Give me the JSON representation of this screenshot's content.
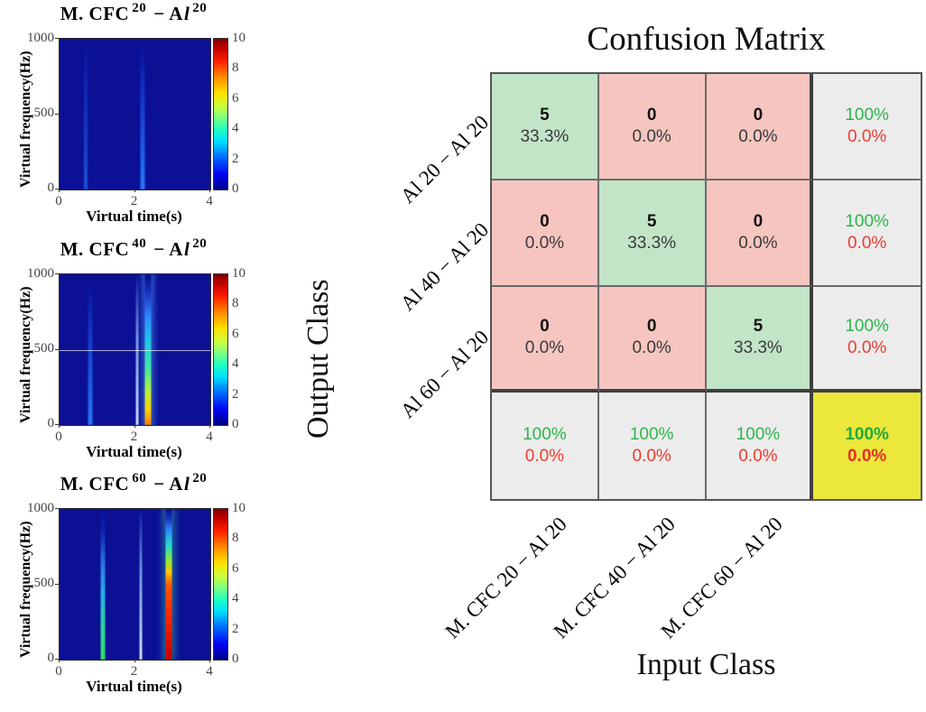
{
  "panels": [
    {
      "title": {
        "base": "M. CFC",
        "sup1": "20",
        "mid": "− A",
        "l": "l",
        "sup2": "20"
      },
      "ylabel": "Virtual frequency(Hz)",
      "xlabel": "Virtual time(s)",
      "yticks": [
        "1000",
        "500",
        "0"
      ],
      "xticks": [
        "0",
        "2",
        "4"
      ],
      "cbar_ticks": [
        "10",
        "8",
        "6",
        "4",
        "2",
        "0"
      ]
    },
    {
      "title": {
        "base": "M. CFC",
        "sup1": "40",
        "mid": "− A",
        "l": "l",
        "sup2": "20"
      },
      "ylabel": "Virtual frequency(Hz)",
      "xlabel": "Virtual time(s)",
      "yticks": [
        "1000",
        "500",
        "0"
      ],
      "xticks": [
        "0",
        "2",
        "4"
      ],
      "cbar_ticks": [
        "10",
        "8",
        "6",
        "4",
        "2",
        "0"
      ]
    },
    {
      "title": {
        "base": "M. CFC",
        "sup1": "60",
        "mid": "− A",
        "l": "l",
        "sup2": "20"
      },
      "ylabel": "Virtual frequency(Hz)",
      "xlabel": "Virtual time(s)",
      "yticks": [
        "1000",
        "500",
        "0"
      ],
      "xticks": [
        "0",
        "2",
        "4"
      ],
      "cbar_ticks": [
        "10",
        "8",
        "6",
        "4",
        "2",
        "0"
      ]
    }
  ],
  "matrix": {
    "title": "Confusion Matrix",
    "output_axis": "Output Class",
    "input_axis": "Input Class",
    "row_labels": [
      "Al 20 − Al 20",
      "Al 40 − Al 20",
      "Al 60 − Al 20"
    ],
    "col_labels": [
      "M. CFC 20 − Al 20",
      "M. CFC 40 − Al 20",
      "M. CFC 60 − Al 20"
    ],
    "cells": [
      [
        {
          "v": "5",
          "p": "33.3%",
          "kind": "hit"
        },
        {
          "v": "0",
          "p": "0.0%",
          "kind": "miss"
        },
        {
          "v": "0",
          "p": "0.0%",
          "kind": "miss"
        },
        {
          "v": "100%",
          "p": "0.0%",
          "kind": "sum"
        }
      ],
      [
        {
          "v": "0",
          "p": "0.0%",
          "kind": "miss"
        },
        {
          "v": "5",
          "p": "33.3%",
          "kind": "hit"
        },
        {
          "v": "0",
          "p": "0.0%",
          "kind": "miss"
        },
        {
          "v": "100%",
          "p": "0.0%",
          "kind": "sum"
        }
      ],
      [
        {
          "v": "0",
          "p": "0.0%",
          "kind": "miss"
        },
        {
          "v": "0",
          "p": "0.0%",
          "kind": "miss"
        },
        {
          "v": "5",
          "p": "33.3%",
          "kind": "hit"
        },
        {
          "v": "100%",
          "p": "0.0%",
          "kind": "sum"
        }
      ],
      [
        {
          "v": "100%",
          "p": "0.0%",
          "kind": "sum"
        },
        {
          "v": "100%",
          "p": "0.0%",
          "kind": "sum"
        },
        {
          "v": "100%",
          "p": "0.0%",
          "kind": "sum"
        },
        {
          "v": "100%",
          "p": "0.0%",
          "kind": "total"
        }
      ]
    ]
  },
  "colors": {
    "hit_bg": "#c2e5c8",
    "miss_bg": "#f6c5c0",
    "summary_bg": "#ececec",
    "total_bg": "#ece73b",
    "good_text": "#2eb54a",
    "bad_text": "#ee3b30",
    "spectrogram_bg": "#0b1095"
  },
  "chart_data": [
    {
      "type": "heatmap",
      "title": "M. CFC 20 − Al 20",
      "xlabel": "Virtual time(s)",
      "ylabel": "Virtual frequency(Hz)",
      "x_range": [
        0,
        4
      ],
      "y_range": [
        0,
        1000
      ],
      "colorbar_range": [
        0,
        10
      ],
      "colorbar_ticks": [
        0,
        2,
        4,
        6,
        8,
        10
      ],
      "events": [
        {
          "time": 0.7,
          "peak_intensity": 1.5,
          "style": "faint"
        },
        {
          "time": 2.2,
          "peak_intensity": 2.0,
          "style": "blue"
        }
      ]
    },
    {
      "type": "heatmap",
      "title": "M. CFC 40 − Al 20",
      "xlabel": "Virtual time(s)",
      "ylabel": "Virtual frequency(Hz)",
      "x_range": [
        0,
        4
      ],
      "y_range": [
        0,
        1000
      ],
      "colorbar_range": [
        0,
        10
      ],
      "colorbar_ticks": [
        0,
        2,
        4,
        6,
        8,
        10
      ],
      "hline_hz": 500,
      "events": [
        {
          "time": 0.82,
          "peak_intensity": 2.5,
          "style": "blue"
        },
        {
          "time": 2.06,
          "peak_intensity": 2.0,
          "style": "pale"
        },
        {
          "time": 2.35,
          "peak_intensity": 9.0,
          "style": "hot"
        }
      ]
    },
    {
      "type": "heatmap",
      "title": "M. CFC 60 − Al 20",
      "xlabel": "Virtual time(s)",
      "ylabel": "Virtual frequency(Hz)",
      "x_range": [
        0,
        4
      ],
      "y_range": [
        0,
        1000
      ],
      "colorbar_range": [
        0,
        10
      ],
      "colorbar_ticks": [
        0,
        2,
        4,
        6,
        8,
        10
      ],
      "events": [
        {
          "time": 1.15,
          "peak_intensity": 4.0,
          "style": "green"
        },
        {
          "time": 2.15,
          "peak_intensity": 2.5,
          "style": "pale"
        },
        {
          "time": 2.9,
          "peak_intensity": 10.0,
          "style": "hot-red"
        }
      ]
    },
    {
      "type": "table",
      "title": "Confusion Matrix",
      "row_axis": "Output Class",
      "col_axis": "Input Class",
      "rows": [
        "Al 20 − Al 20",
        "Al 40 − Al 20",
        "Al 60 − Al 20"
      ],
      "cols": [
        "M. CFC 20 − Al 20",
        "M. CFC 40 − Al 20",
        "M. CFC 60 − Al 20"
      ],
      "counts": [
        [
          5,
          0,
          0
        ],
        [
          0,
          5,
          0
        ],
        [
          0,
          0,
          5
        ]
      ],
      "percents": [
        [
          "33.3%",
          "0.0%",
          "0.0%"
        ],
        [
          "0.0%",
          "33.3%",
          "0.0%"
        ],
        [
          "0.0%",
          "0.0%",
          "33.3%"
        ]
      ],
      "row_summary": [
        [
          "100%",
          "0.0%"
        ],
        [
          "100%",
          "0.0%"
        ],
        [
          "100%",
          "0.0%"
        ]
      ],
      "col_summary": [
        [
          "100%",
          "0.0%"
        ],
        [
          "100%",
          "0.0%"
        ],
        [
          "100%",
          "0.0%"
        ]
      ],
      "overall": [
        "100%",
        "0.0%"
      ]
    }
  ]
}
